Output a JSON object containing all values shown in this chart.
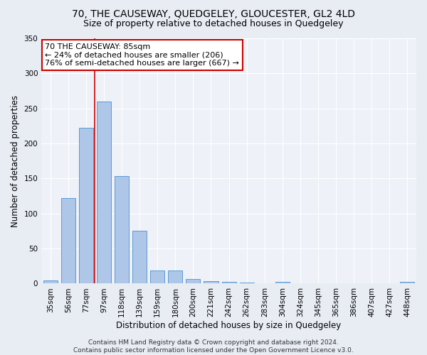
{
  "title": "70, THE CAUSEWAY, QUEDGELEY, GLOUCESTER, GL2 4LD",
  "subtitle": "Size of property relative to detached houses in Quedgeley",
  "xlabel": "Distribution of detached houses by size in Quedgeley",
  "ylabel": "Number of detached properties",
  "categories": [
    "35sqm",
    "56sqm",
    "77sqm",
    "97sqm",
    "118sqm",
    "139sqm",
    "159sqm",
    "180sqm",
    "200sqm",
    "221sqm",
    "242sqm",
    "262sqm",
    "283sqm",
    "304sqm",
    "324sqm",
    "345sqm",
    "365sqm",
    "386sqm",
    "407sqm",
    "427sqm",
    "448sqm"
  ],
  "values": [
    5,
    122,
    222,
    260,
    153,
    75,
    19,
    19,
    7,
    4,
    2,
    1,
    0,
    2,
    0,
    0,
    0,
    0,
    0,
    0,
    2
  ],
  "bar_color": "#aec6e8",
  "bar_edge_color": "#5b9bd5",
  "bar_width": 0.8,
  "red_line_x": 2.5,
  "annotation_text": "70 THE CAUSEWAY: 85sqm\n← 24% of detached houses are smaller (206)\n76% of semi-detached houses are larger (667) →",
  "annotation_box_color": "#ffffff",
  "annotation_box_edge": "#cc0000",
  "ylim": [
    0,
    350
  ],
  "yticks": [
    0,
    50,
    100,
    150,
    200,
    250,
    300,
    350
  ],
  "bg_color": "#e8edf4",
  "plot_bg_color": "#eef1f7",
  "grid_color": "#ffffff",
  "footer": "Contains HM Land Registry data © Crown copyright and database right 2024.\nContains public sector information licensed under the Open Government Licence v3.0.",
  "title_fontsize": 10,
  "subtitle_fontsize": 9,
  "axis_label_fontsize": 8.5,
  "tick_fontsize": 7.5,
  "annotation_fontsize": 8,
  "footer_fontsize": 6.5
}
